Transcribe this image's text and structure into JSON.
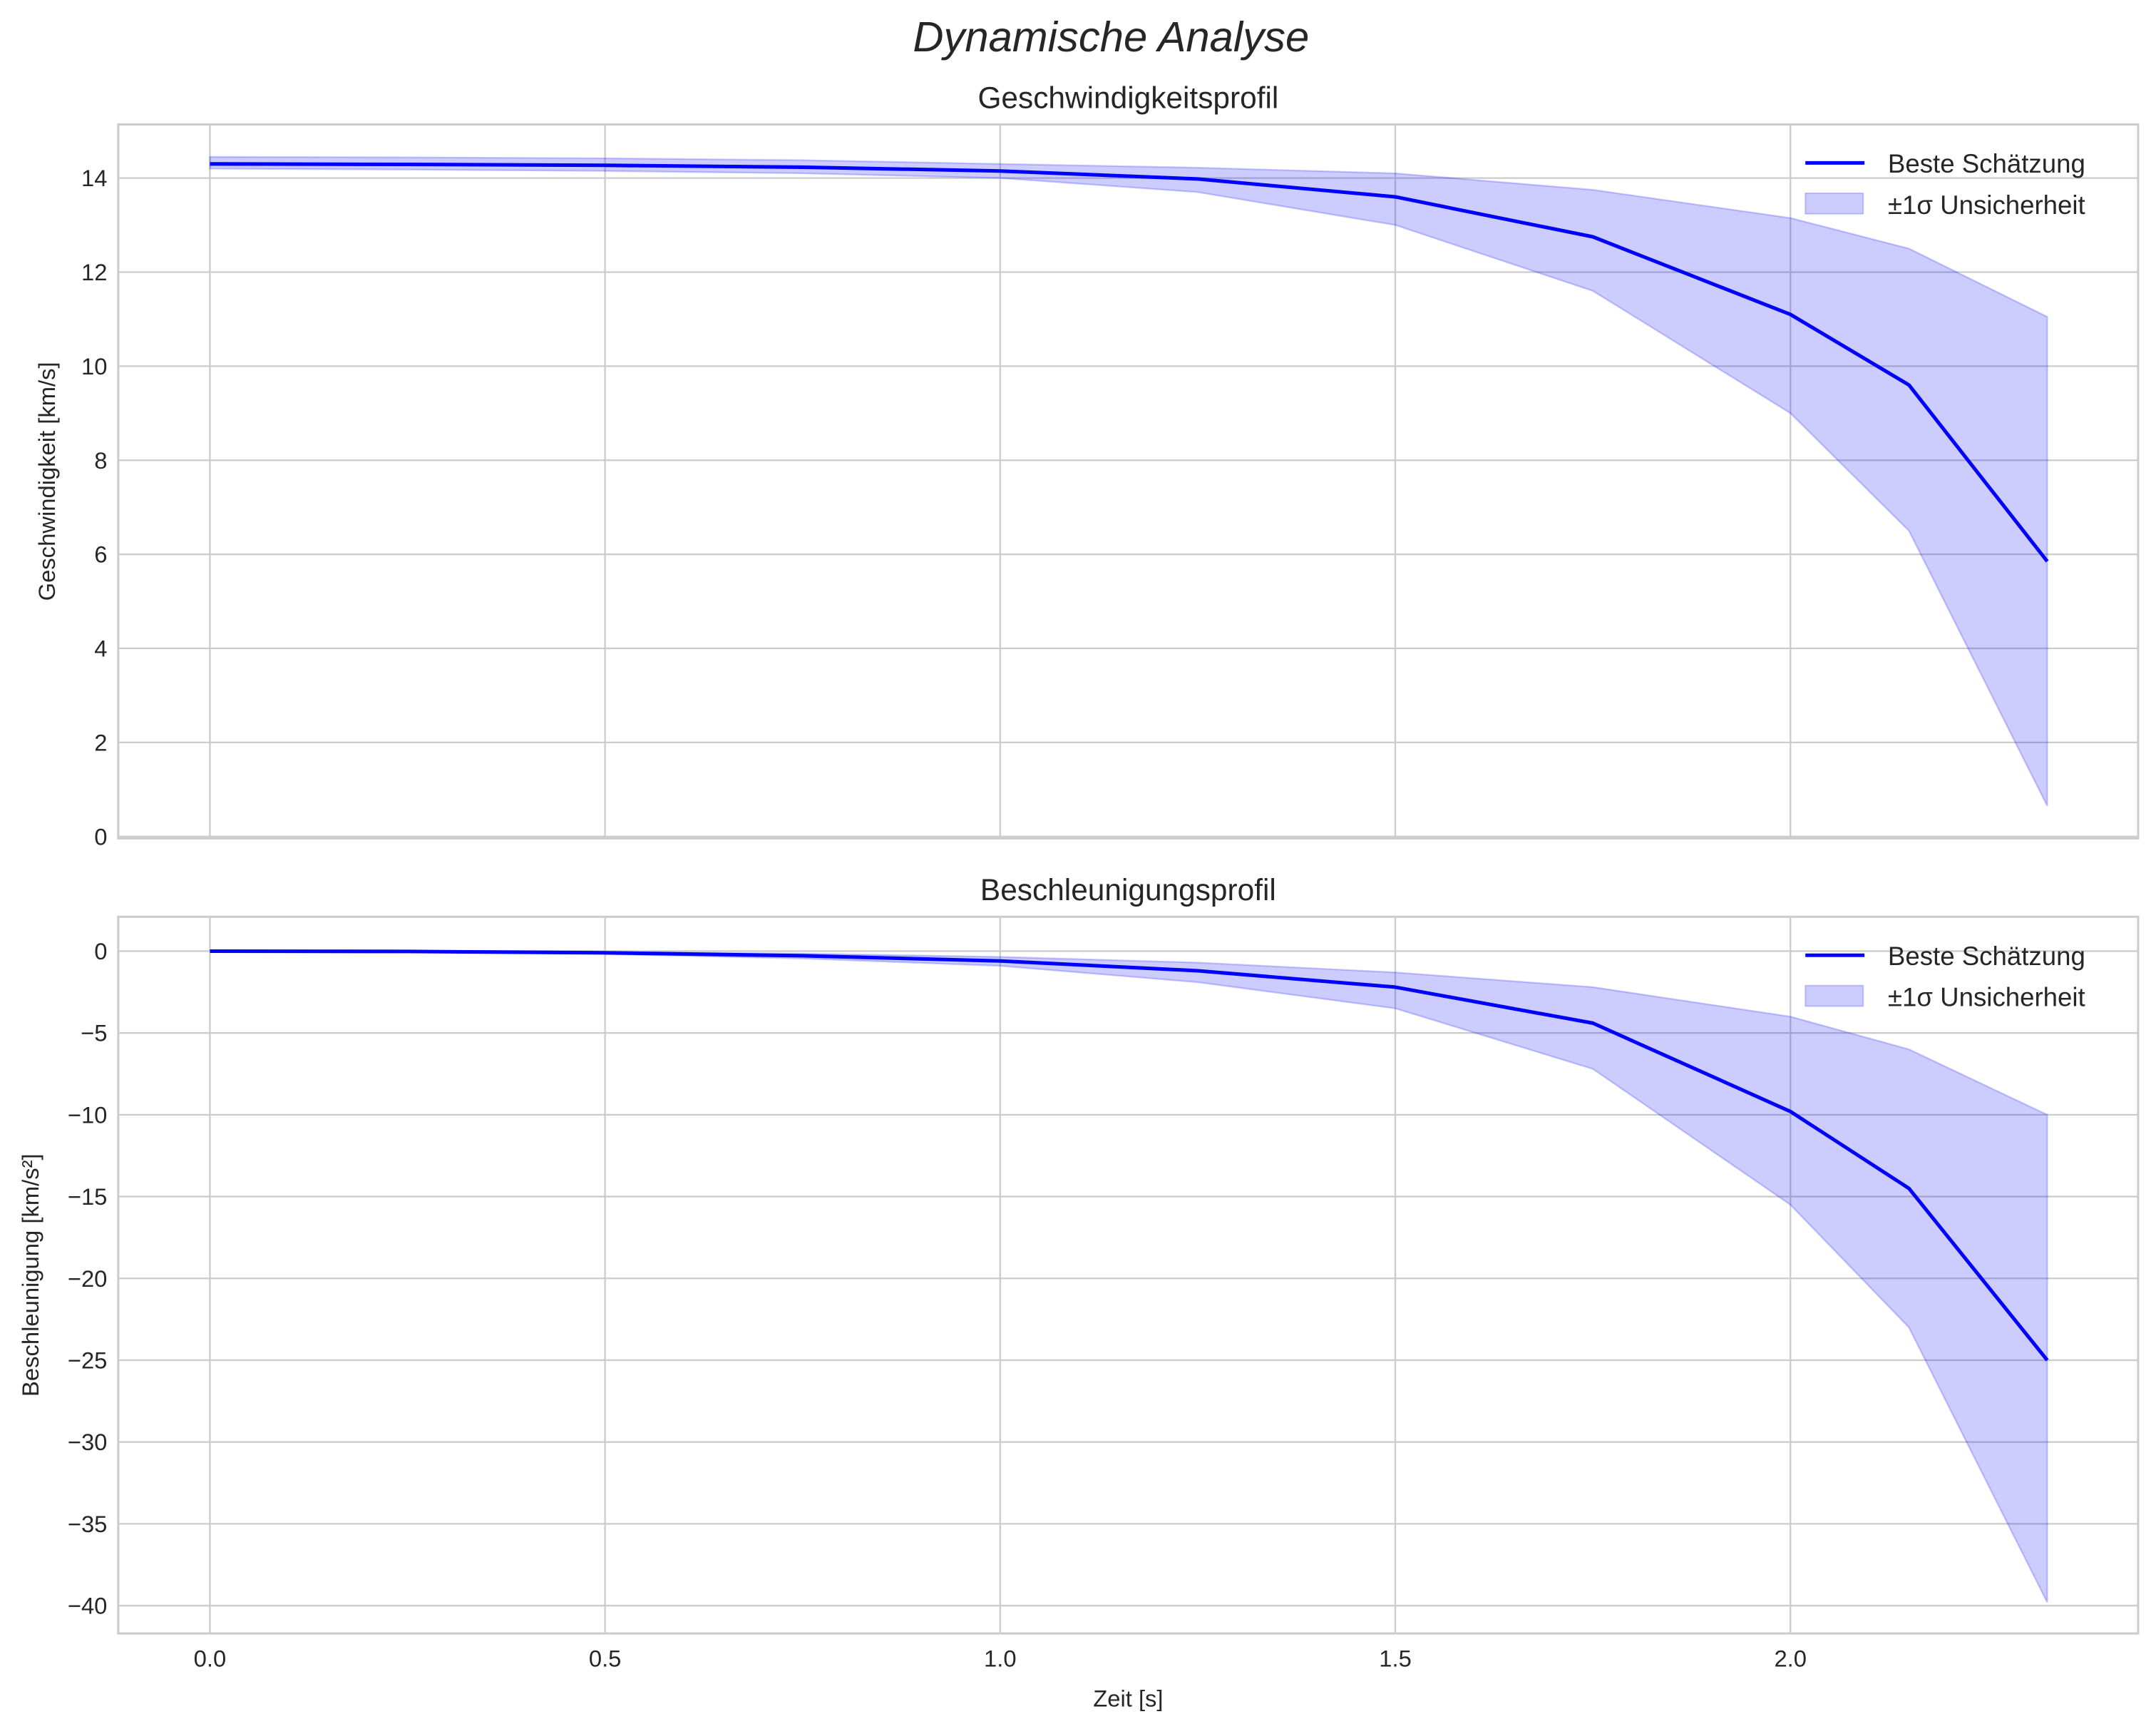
{
  "suptitle": "Dynamische Analyse",
  "colors": {
    "line": "#0000ff",
    "band": "#0000ff",
    "grid": "#cccccc"
  },
  "chart_data": [
    {
      "type": "line",
      "title": "Geschwindigkeitsprofil",
      "xlabel": "",
      "ylabel": "Geschwindigkeit [km/s]",
      "xlim": [
        -0.116,
        2.44
      ],
      "ylim": [
        -0.04,
        15.14
      ],
      "xticks": [
        0.0,
        0.5,
        1.0,
        1.5,
        2.0
      ],
      "xtick_labels": [
        "",
        "",
        "",
        "",
        ""
      ],
      "yticks": [
        0,
        2,
        4,
        6,
        8,
        10,
        12,
        14
      ],
      "ytick_labels": [
        "0",
        "2",
        "4",
        "6",
        "8",
        "10",
        "12",
        "14"
      ],
      "grid": true,
      "legend_position": "top-right",
      "legend": [
        "Beste Schätzung",
        "±1σ Unsicherheit"
      ],
      "x": [
        0,
        0.25,
        0.5,
        0.75,
        1.0,
        1.25,
        1.5,
        1.75,
        2.0,
        2.15,
        2.325
      ],
      "series": [
        {
          "name": "Beste Schätzung",
          "values": [
            14.3,
            14.29,
            14.27,
            14.23,
            14.15,
            13.98,
            13.6,
            12.75,
            11.1,
            9.6,
            5.85
          ]
        },
        {
          "name": "±1σ Unsicherheit (unten)",
          "values": [
            14.2,
            14.18,
            14.15,
            14.1,
            14.0,
            13.7,
            13.0,
            11.6,
            9.0,
            6.5,
            0.65
          ]
        },
        {
          "name": "±1σ Unsicherheit (oben)",
          "values": [
            14.45,
            14.44,
            14.42,
            14.38,
            14.3,
            14.22,
            14.1,
            13.75,
            13.15,
            12.5,
            11.05
          ]
        }
      ]
    },
    {
      "type": "line",
      "title": "Beschleunigungsprofil",
      "xlabel": "Zeit [s]",
      "ylabel": "Beschleunigung [km/s²]",
      "xlim": [
        -0.116,
        2.44
      ],
      "ylim": [
        -41.7,
        2.1
      ],
      "xticks": [
        0.0,
        0.5,
        1.0,
        1.5,
        2.0
      ],
      "xtick_labels": [
        "0.0",
        "0.5",
        "1.0",
        "1.5",
        "2.0"
      ],
      "yticks": [
        0,
        -5,
        -10,
        -15,
        -20,
        -25,
        -30,
        -35,
        -40
      ],
      "ytick_labels": [
        "0",
        "−5",
        "−10",
        "−15",
        "−20",
        "−25",
        "−30",
        "−35",
        "−40"
      ],
      "grid": true,
      "legend_position": "top-right",
      "legend": [
        "Beste Schätzung",
        "±1σ Unsicherheit"
      ],
      "x": [
        0,
        0.25,
        0.5,
        0.75,
        1.0,
        1.25,
        1.5,
        1.75,
        2.0,
        2.15,
        2.325
      ],
      "series": [
        {
          "name": "Beste Schätzung",
          "values": [
            0,
            -0.02,
            -0.1,
            -0.28,
            -0.6,
            -1.2,
            -2.2,
            -4.4,
            -9.8,
            -14.5,
            -25
          ]
        },
        {
          "name": "±1σ Unsicherheit (unten)",
          "values": [
            0,
            -0.04,
            -0.18,
            -0.45,
            -0.9,
            -1.9,
            -3.5,
            -7.2,
            -15.5,
            -23,
            -39.8
          ]
        },
        {
          "name": "±1σ Unsicherheit (oben)",
          "values": [
            0,
            -0.01,
            -0.05,
            -0.15,
            -0.35,
            -0.7,
            -1.3,
            -2.2,
            -4.0,
            -6.0,
            -10
          ]
        }
      ]
    }
  ]
}
